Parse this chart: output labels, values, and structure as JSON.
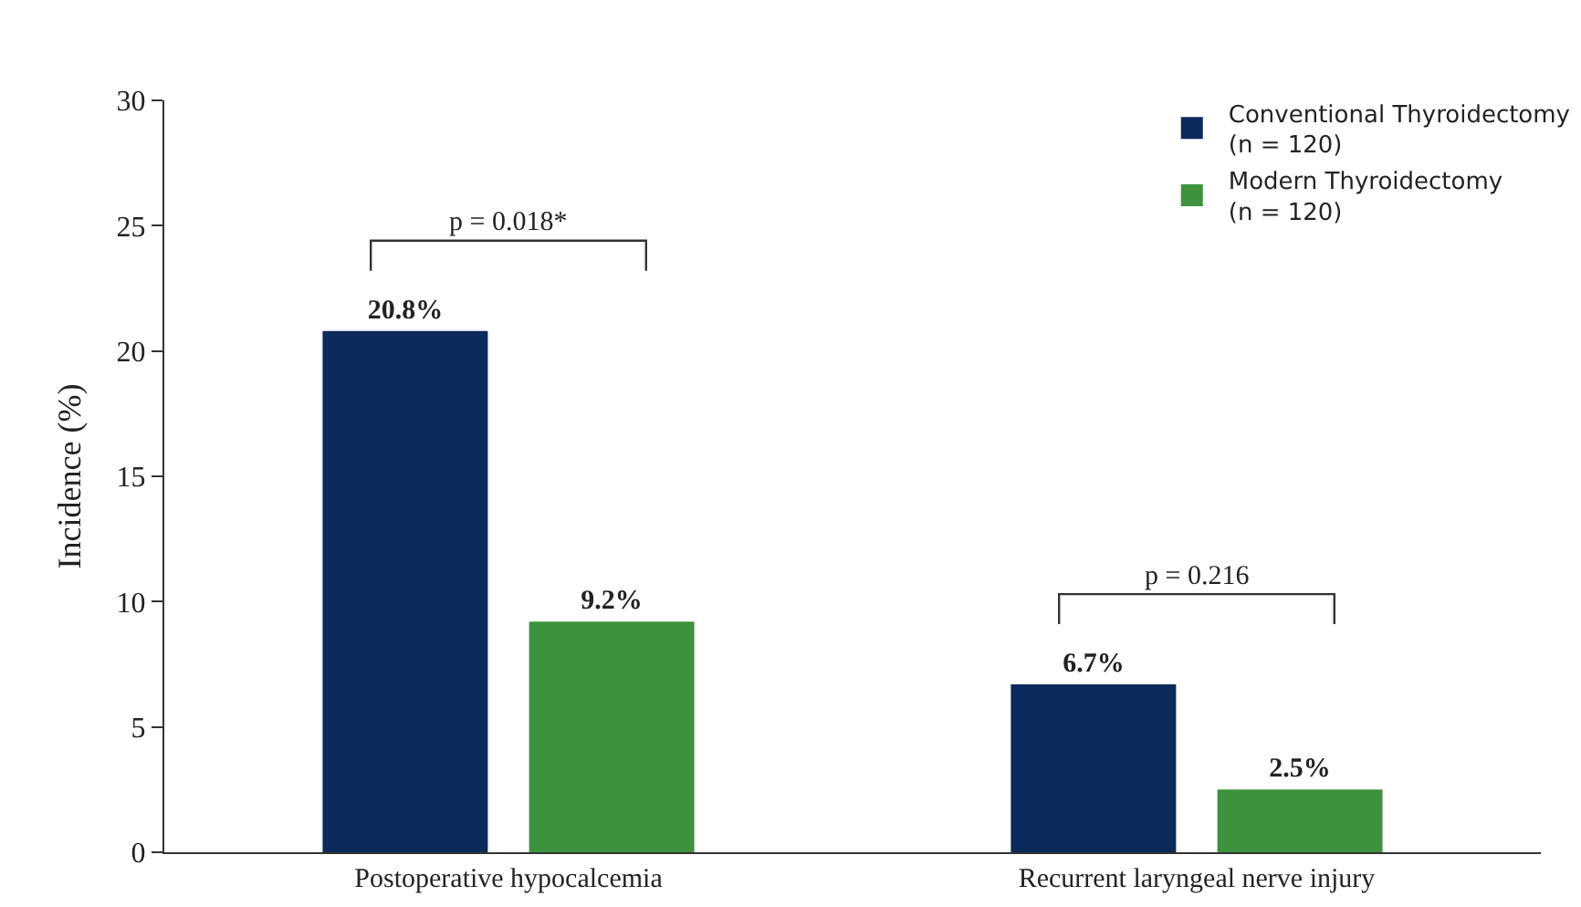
{
  "chart_data": {
    "type": "bar",
    "ylabel": "Incidence (%)",
    "categories": [
      "Postoperative hypocalcemia",
      "Recurrent laryngeal nerve injury"
    ],
    "series": [
      {
        "name": "Conventional Thyroidectomy\n(n = 120)",
        "color": "#0c2a5b",
        "values": [
          20.8,
          6.7
        ],
        "value_labels": [
          "20.8%",
          "6.7%"
        ]
      },
      {
        "name": "Modern Thyroidectomy\n(n = 120)",
        "color": "#3d923d",
        "values": [
          9.2,
          2.5
        ],
        "value_labels": [
          "9.2%",
          "2.5%"
        ]
      }
    ],
    "annotations": [
      "p = 0.018*",
      "p = 0.216"
    ],
    "ylim": [
      0,
      30
    ],
    "yticks": [
      0,
      5,
      10,
      15,
      20,
      25,
      30
    ],
    "grid": false,
    "legend": "top right"
  }
}
